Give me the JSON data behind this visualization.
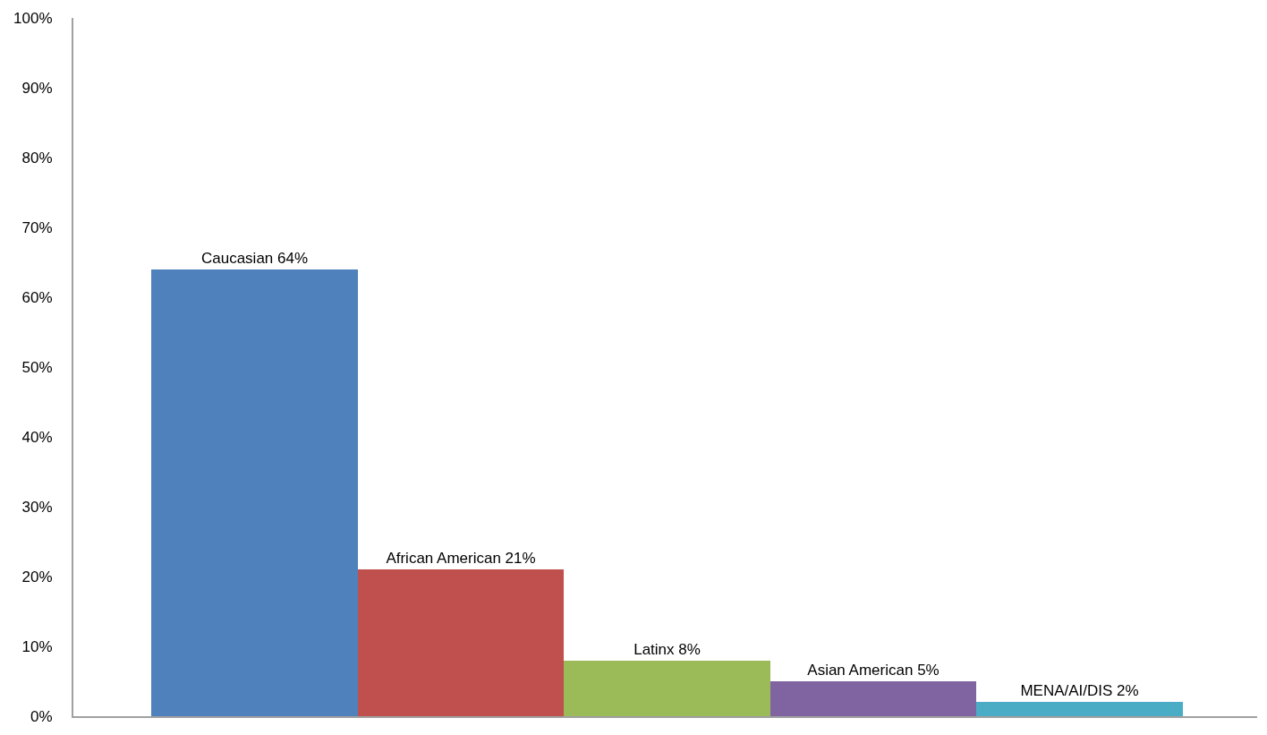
{
  "chart_data": {
    "type": "bar",
    "categories": [
      null,
      null,
      null,
      null,
      null
    ],
    "values": [
      64,
      21,
      8,
      5,
      2
    ],
    "colors": [
      "#4f81bd",
      "#c0504d",
      "#9bbb59",
      "#8064a2",
      "#4bacc6"
    ],
    "value_labels": [
      "Caucasian 64%",
      "African American 21%",
      "Latinx 8%",
      "Asian American 5%",
      "MENA/AI/DIS 2%"
    ],
    "ylim": [
      0,
      100
    ],
    "yticks": [
      {
        "value": 0,
        "label": "0%"
      },
      {
        "value": 10,
        "label": "10%"
      },
      {
        "value": 20,
        "label": "20%"
      },
      {
        "value": 30,
        "label": "30%"
      },
      {
        "value": 40,
        "label": "40%"
      },
      {
        "value": 50,
        "label": "50%"
      },
      {
        "value": 60,
        "label": "60%"
      },
      {
        "value": 70,
        "label": "70%"
      },
      {
        "value": 80,
        "label": "80%"
      },
      {
        "value": 90,
        "label": "90%"
      },
      {
        "value": 100,
        "label": "100%"
      }
    ],
    "tick_labels": "y"
  }
}
